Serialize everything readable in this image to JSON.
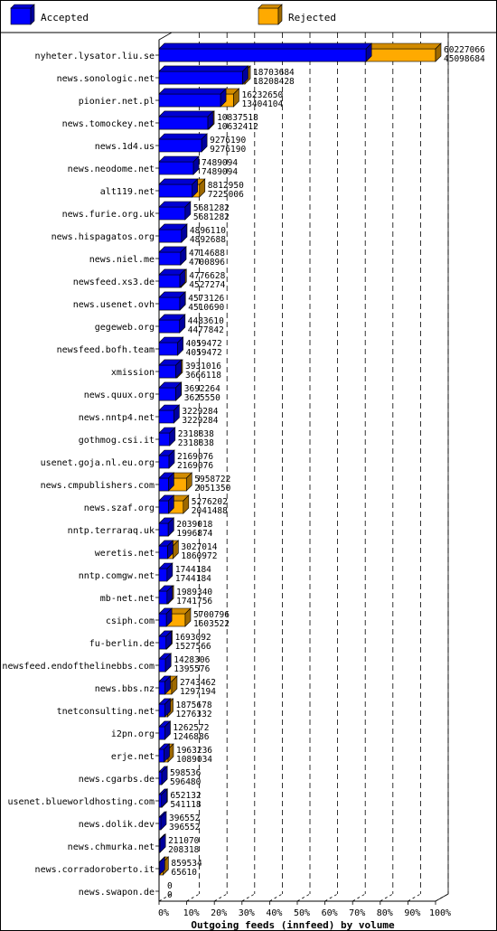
{
  "chart_data": {
    "type": "bar",
    "stacked": "overlay-3d",
    "orientation": "horizontal",
    "title": "Outgoing feeds (innfeed) by volume",
    "legend": [
      {
        "name": "Accepted",
        "color": "#0000ff"
      },
      {
        "name": "Rejected",
        "color": "#ffaa00"
      }
    ],
    "colors": {
      "accepted": "#0000ff",
      "rejected": "#ffaa00",
      "rejected_dark": "#c08000",
      "accepted_dark": "#0000a0",
      "grid": "#000000"
    },
    "x_ticks": [
      "0%",
      "10%",
      "20%",
      "30%",
      "40%",
      "50%",
      "60%",
      "70%",
      "80%",
      "90%",
      "100%"
    ],
    "xlim": [
      0,
      60227066
    ],
    "rows": [
      {
        "name": "nyheter.lysator.liu.se",
        "offered": 60227066,
        "accepted": 45098684
      },
      {
        "name": "news.sonologic.net",
        "offered": 18703684,
        "accepted": 18208428
      },
      {
        "name": "pionier.net.pl",
        "offered": 16232650,
        "accepted": 13404104
      },
      {
        "name": "news.tomockey.net",
        "offered": 10837518,
        "accepted": 10632412
      },
      {
        "name": "news.1d4.us",
        "offered": 9276190,
        "accepted": 9276190
      },
      {
        "name": "news.neodome.net",
        "offered": 7489094,
        "accepted": 7489094
      },
      {
        "name": "alt119.net",
        "offered": 8812950,
        "accepted": 7225006
      },
      {
        "name": "news.furie.org.uk",
        "offered": 5681282,
        "accepted": 5681282
      },
      {
        "name": "news.hispagatos.org",
        "offered": 4896110,
        "accepted": 4892688
      },
      {
        "name": "news.niel.me",
        "offered": 4714688,
        "accepted": 4700896
      },
      {
        "name": "newsfeed.xs3.de",
        "offered": 4776628,
        "accepted": 4527274
      },
      {
        "name": "news.usenet.ovh",
        "offered": 4573126,
        "accepted": 4510690
      },
      {
        "name": "gegeweb.org",
        "offered": 4483610,
        "accepted": 4477842
      },
      {
        "name": "newsfeed.bofh.team",
        "offered": 4059472,
        "accepted": 4059472
      },
      {
        "name": "xmission",
        "offered": 3931016,
        "accepted": 3666118
      },
      {
        "name": "news.quux.org",
        "offered": 3692264,
        "accepted": 3625550
      },
      {
        "name": "news.nntp4.net",
        "offered": 3229284,
        "accepted": 3229284
      },
      {
        "name": "gothmog.csi.it",
        "offered": 2318838,
        "accepted": 2318838
      },
      {
        "name": "usenet.goja.nl.eu.org",
        "offered": 2169076,
        "accepted": 2169076
      },
      {
        "name": "news.cmpublishers.com",
        "offered": 5958722,
        "accepted": 2051350
      },
      {
        "name": "news.szaf.org",
        "offered": 5276202,
        "accepted": 2041488
      },
      {
        "name": "nntp.terraraq.uk",
        "offered": 2039018,
        "accepted": 1996874
      },
      {
        "name": "weretis.net",
        "offered": 3027014,
        "accepted": 1860972
      },
      {
        "name": "nntp.comgw.net",
        "offered": 1744184,
        "accepted": 1744184
      },
      {
        "name": "mb-net.net",
        "offered": 1989340,
        "accepted": 1741756
      },
      {
        "name": "csiph.com",
        "offered": 5700796,
        "accepted": 1603522
      },
      {
        "name": "fu-berlin.de",
        "offered": 1693092,
        "accepted": 1527566
      },
      {
        "name": "newsfeed.endofthelinebbs.com",
        "offered": 1428306,
        "accepted": 1395576
      },
      {
        "name": "news.bbs.nz",
        "offered": 2743462,
        "accepted": 1297194
      },
      {
        "name": "tnetconsulting.net",
        "offered": 1875678,
        "accepted": 1276332
      },
      {
        "name": "i2pn.org",
        "offered": 1262572,
        "accepted": 1246886
      },
      {
        "name": "erje.net",
        "offered": 1963236,
        "accepted": 1089034
      },
      {
        "name": "news.cgarbs.de",
        "offered": 598536,
        "accepted": 596480
      },
      {
        "name": "usenet.blueworldhosting.com",
        "offered": 652132,
        "accepted": 541118
      },
      {
        "name": "news.dolik.dev",
        "offered": 396552,
        "accepted": 396552
      },
      {
        "name": "news.chmurka.net",
        "offered": 211070,
        "accepted": 208318
      },
      {
        "name": "news.corradoroberto.it",
        "offered": 859534,
        "accepted": 65610
      },
      {
        "name": "news.swapon.de",
        "offered": 0,
        "accepted": 0
      }
    ]
  }
}
